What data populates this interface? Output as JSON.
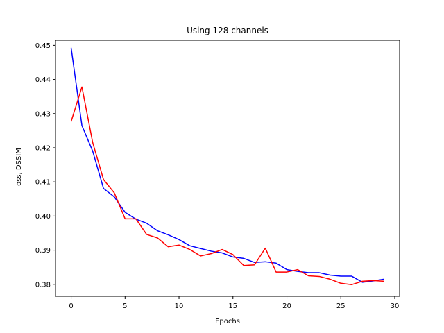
{
  "chart_data": {
    "type": "line",
    "title": "Using 128 channels",
    "xlabel": "Epochs",
    "ylabel": "loss, DSSIM",
    "xlim": [
      -1.45,
      30.45
    ],
    "ylim": [
      0.3765,
      0.4515
    ],
    "xticks": [
      0,
      5,
      10,
      15,
      20,
      25,
      30
    ],
    "yticks": [
      0.38,
      0.39,
      0.4,
      0.41,
      0.42,
      0.43,
      0.44,
      0.45
    ],
    "ytick_labels": [
      "0.38",
      "0.39",
      "0.40",
      "0.41",
      "0.42",
      "0.43",
      "0.44",
      "0.45"
    ],
    "grid": false,
    "x": [
      0,
      1,
      2,
      3,
      4,
      5,
      6,
      7,
      8,
      9,
      10,
      11,
      12,
      13,
      14,
      15,
      16,
      17,
      18,
      19,
      20,
      21,
      22,
      23,
      24,
      25,
      26,
      27,
      28,
      29
    ],
    "series": [
      {
        "color": "#0000ff",
        "values": [
          0.4493,
          0.4265,
          0.419,
          0.4081,
          0.4056,
          0.4011,
          0.3991,
          0.3979,
          0.3957,
          0.3945,
          0.3931,
          0.3913,
          0.3905,
          0.3897,
          0.3892,
          0.388,
          0.3876,
          0.3864,
          0.3866,
          0.3862,
          0.3843,
          0.3838,
          0.3834,
          0.3834,
          0.3827,
          0.3824,
          0.3824,
          0.3806,
          0.381,
          0.3815
        ]
      },
      {
        "color": "#ff0000",
        "values": [
          0.4277,
          0.4378,
          0.4215,
          0.4107,
          0.4068,
          0.3992,
          0.3992,
          0.3946,
          0.3936,
          0.391,
          0.3915,
          0.3902,
          0.3883,
          0.389,
          0.3902,
          0.3887,
          0.3855,
          0.3857,
          0.3906,
          0.3836,
          0.3836,
          0.3843,
          0.3825,
          0.3823,
          0.3815,
          0.3803,
          0.3799,
          0.3809,
          0.3811,
          0.3809
        ]
      }
    ]
  }
}
